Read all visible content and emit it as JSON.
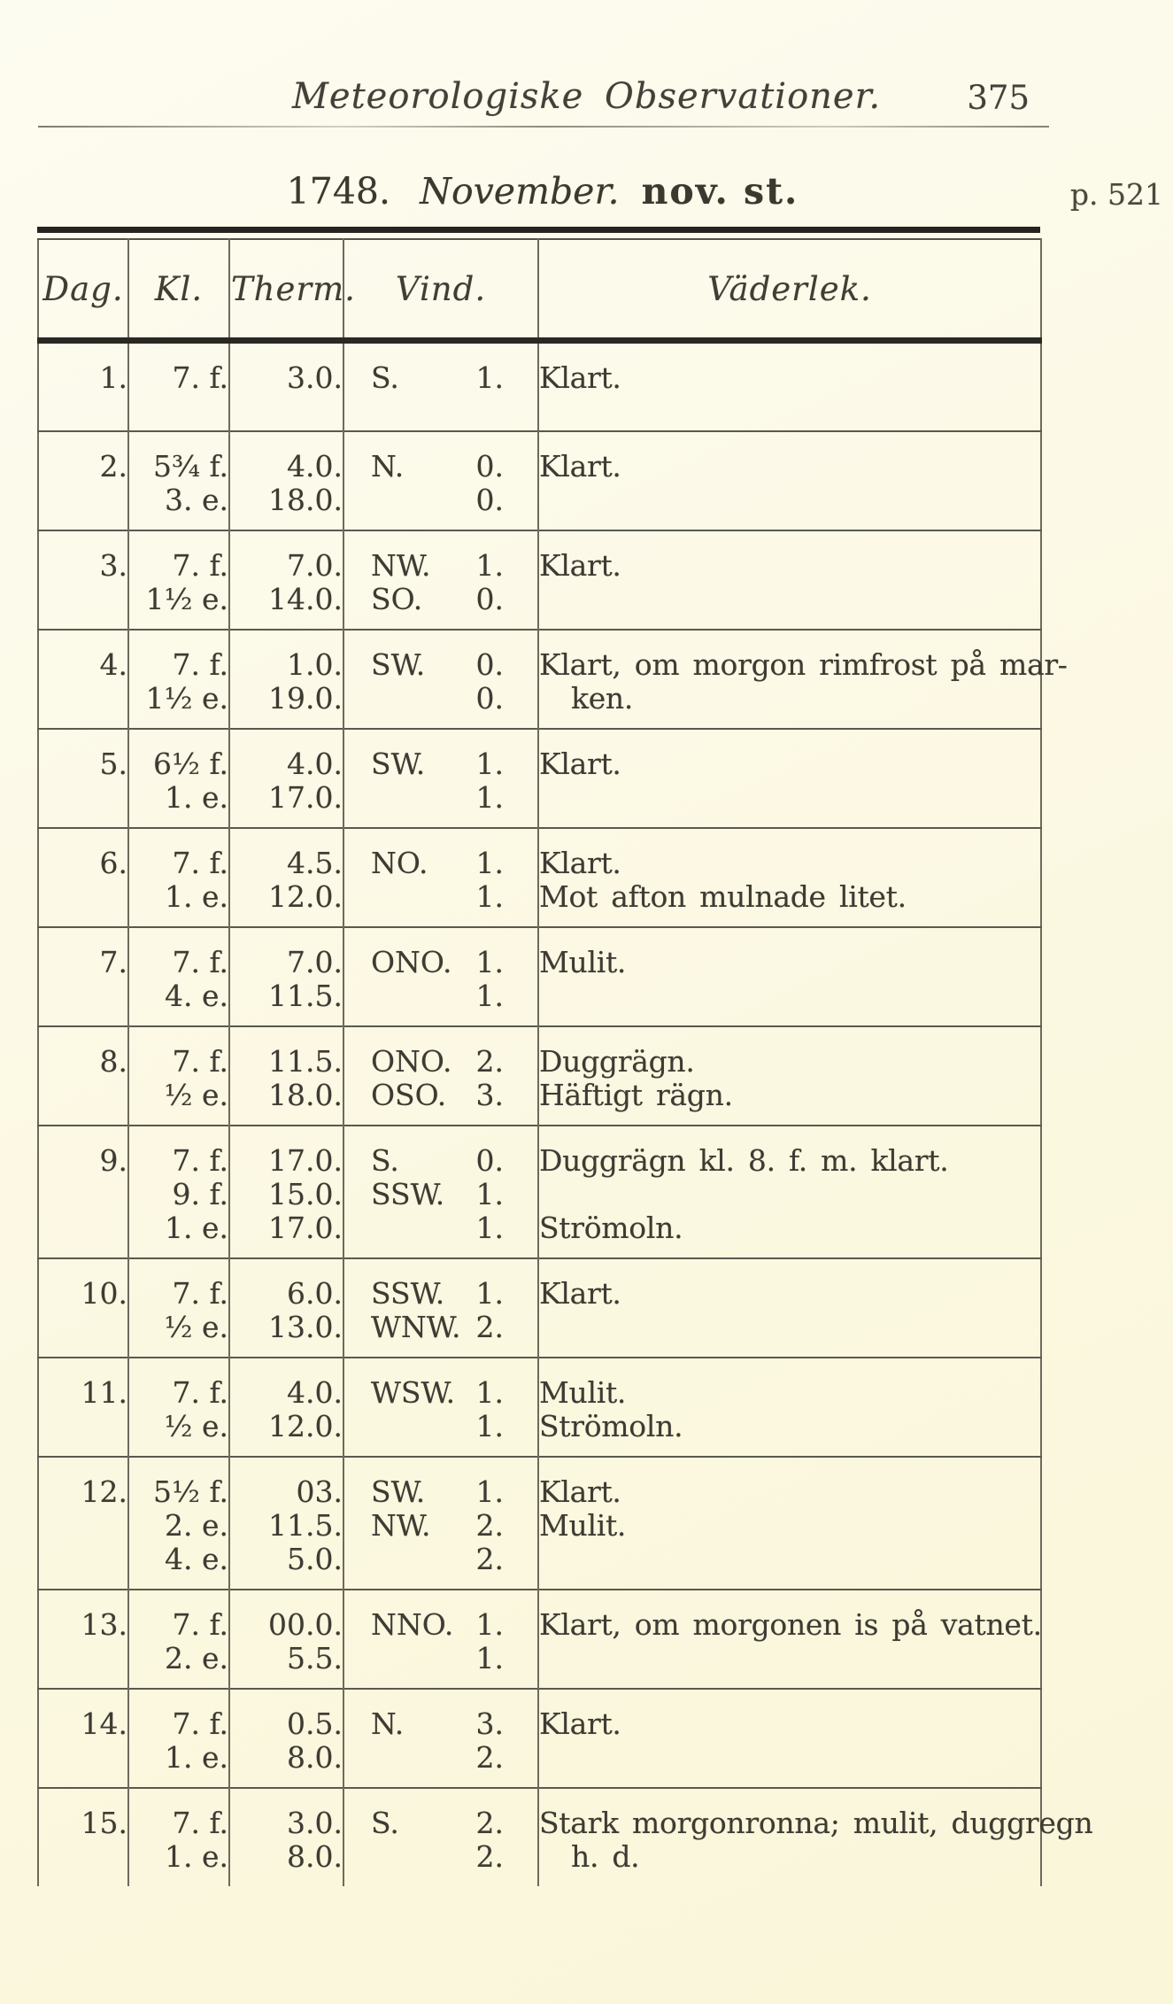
{
  "colors": {
    "paper": "#fbf8e2",
    "ink": "#3e3b33",
    "rule_heavy": "#262420",
    "rule_light": "#6e6a5c"
  },
  "running_head": {
    "title": "Meteorologiske Observationer.",
    "page_number": "375"
  },
  "title": {
    "year": "1748.",
    "month": "November.",
    "calendar_style": "nov. st.",
    "page_ref": "p. 521"
  },
  "table": {
    "columns": [
      "Dag.",
      "Kl.",
      "Therm.",
      "Vind.",
      "Väderlek."
    ],
    "rows": [
      {
        "day": "1.",
        "lines": [
          {
            "kl": "7. f.",
            "therm": "3.0.",
            "dir": "S.",
            "force": "1.",
            "weather": "Klart."
          }
        ]
      },
      {
        "day": "2.",
        "lines": [
          {
            "kl": "5³⁄₄ f.",
            "therm": "4.0.",
            "dir": "N.",
            "force": "0.",
            "weather": "Klart."
          },
          {
            "kl": "3. e.",
            "therm": "18.0.",
            "dir": "",
            "force": "0.",
            "weather": ""
          }
        ]
      },
      {
        "day": "3.",
        "lines": [
          {
            "kl": "7. f.",
            "therm": "7.0.",
            "dir": "NW.",
            "force": "1.",
            "weather": "Klart."
          },
          {
            "kl": "1¹⁄₂ e.",
            "therm": "14.0.",
            "dir": "SO.",
            "force": "0.",
            "weather": ""
          }
        ]
      },
      {
        "day": "4.",
        "lines": [
          {
            "kl": "7. f.",
            "therm": "1.0.",
            "dir": "SW.",
            "force": "0.",
            "weather": "Klart, om morgon rimfrost på mar-"
          },
          {
            "kl": "1¹⁄₂ e.",
            "therm": "19.0.",
            "dir": "",
            "force": "0.",
            "weather": "ken.",
            "indent": true
          }
        ]
      },
      {
        "day": "5.",
        "lines": [
          {
            "kl": "6¹⁄₂ f.",
            "therm": "4.0.",
            "dir": "SW.",
            "force": "1.",
            "weather": "Klart."
          },
          {
            "kl": "1. e.",
            "therm": "17.0.",
            "dir": "",
            "force": "1.",
            "weather": ""
          }
        ]
      },
      {
        "day": "6.",
        "lines": [
          {
            "kl": "7. f.",
            "therm": "4.5.",
            "dir": "NO.",
            "force": "1.",
            "weather": "Klart."
          },
          {
            "kl": "1. e.",
            "therm": "12.0.",
            "dir": "",
            "force": "1.",
            "weather": "Mot afton mulnade litet."
          }
        ]
      },
      {
        "day": "7.",
        "lines": [
          {
            "kl": "7. f.",
            "therm": "7.0.",
            "dir": "ONO.",
            "force": "1.",
            "weather": "Mulit."
          },
          {
            "kl": "4. e.",
            "therm": "11.5.",
            "dir": "",
            "force": "1.",
            "weather": ""
          }
        ]
      },
      {
        "day": "8.",
        "lines": [
          {
            "kl": "7. f.",
            "therm": "11.5.",
            "dir": "ONO.",
            "force": "2.",
            "weather": "Duggrägn."
          },
          {
            "kl": "¹⁄₂ e.",
            "therm": "18.0.",
            "dir": "OSO.",
            "force": "3.",
            "weather": "Häftigt rägn."
          }
        ]
      },
      {
        "day": "9.",
        "lines": [
          {
            "kl": "7. f.",
            "therm": "17.0.",
            "dir": "S.",
            "force": "0.",
            "weather": "Duggrägn kl. 8. f. m. klart."
          },
          {
            "kl": "9. f.",
            "therm": "15.0.",
            "dir": "SSW.",
            "force": "1.",
            "weather": ""
          },
          {
            "kl": "1. e.",
            "therm": "17.0.",
            "dir": "",
            "force": "1.",
            "weather": "Strömoln."
          }
        ]
      },
      {
        "day": "10.",
        "lines": [
          {
            "kl": "7. f.",
            "therm": "6.0.",
            "dir": "SSW.",
            "force": "1.",
            "weather": "Klart."
          },
          {
            "kl": "¹⁄₂ e.",
            "therm": "13.0.",
            "dir": "WNW.",
            "force": "2.",
            "weather": ""
          }
        ]
      },
      {
        "day": "11.",
        "lines": [
          {
            "kl": "7. f.",
            "therm": "4.0.",
            "dir": "WSW.",
            "force": "1.",
            "weather": "Mulit."
          },
          {
            "kl": "¹⁄₂ e.",
            "therm": "12.0.",
            "dir": "",
            "force": "1.",
            "weather": "Strömoln."
          }
        ]
      },
      {
        "day": "12.",
        "lines": [
          {
            "kl": "5¹⁄₂ f.",
            "therm": "03.",
            "dir": "SW.",
            "force": "1.",
            "weather": "Klart."
          },
          {
            "kl": "2. e.",
            "therm": "11.5.",
            "dir": "NW.",
            "force": "2.",
            "weather": "Mulit."
          },
          {
            "kl": "4. e.",
            "therm": "5.0.",
            "dir": "",
            "force": "2.",
            "weather": ""
          }
        ]
      },
      {
        "day": "13.",
        "lines": [
          {
            "kl": "7. f.",
            "therm": "00.0.",
            "dir": "NNO.",
            "force": "1.",
            "weather": "Klart, om morgonen is på vatnet."
          },
          {
            "kl": "2. e.",
            "therm": "5.5.",
            "dir": "",
            "force": "1.",
            "weather": ""
          }
        ]
      },
      {
        "day": "14.",
        "lines": [
          {
            "kl": "7. f.",
            "therm": "0.5.",
            "dir": "N.",
            "force": "3.",
            "weather": "Klart."
          },
          {
            "kl": "1. e.",
            "therm": "8.0.",
            "dir": "",
            "force": "2.",
            "weather": ""
          }
        ]
      },
      {
        "day": "15.",
        "lines": [
          {
            "kl": "7. f.",
            "therm": "3.0.",
            "dir": "S.",
            "force": "2.",
            "weather": "Stark morgonronna; mulit, duggregn"
          },
          {
            "kl": "1. e.",
            "therm": "8.0.",
            "dir": "",
            "force": "2.",
            "weather": "h. d.",
            "indent": true
          }
        ]
      }
    ]
  }
}
